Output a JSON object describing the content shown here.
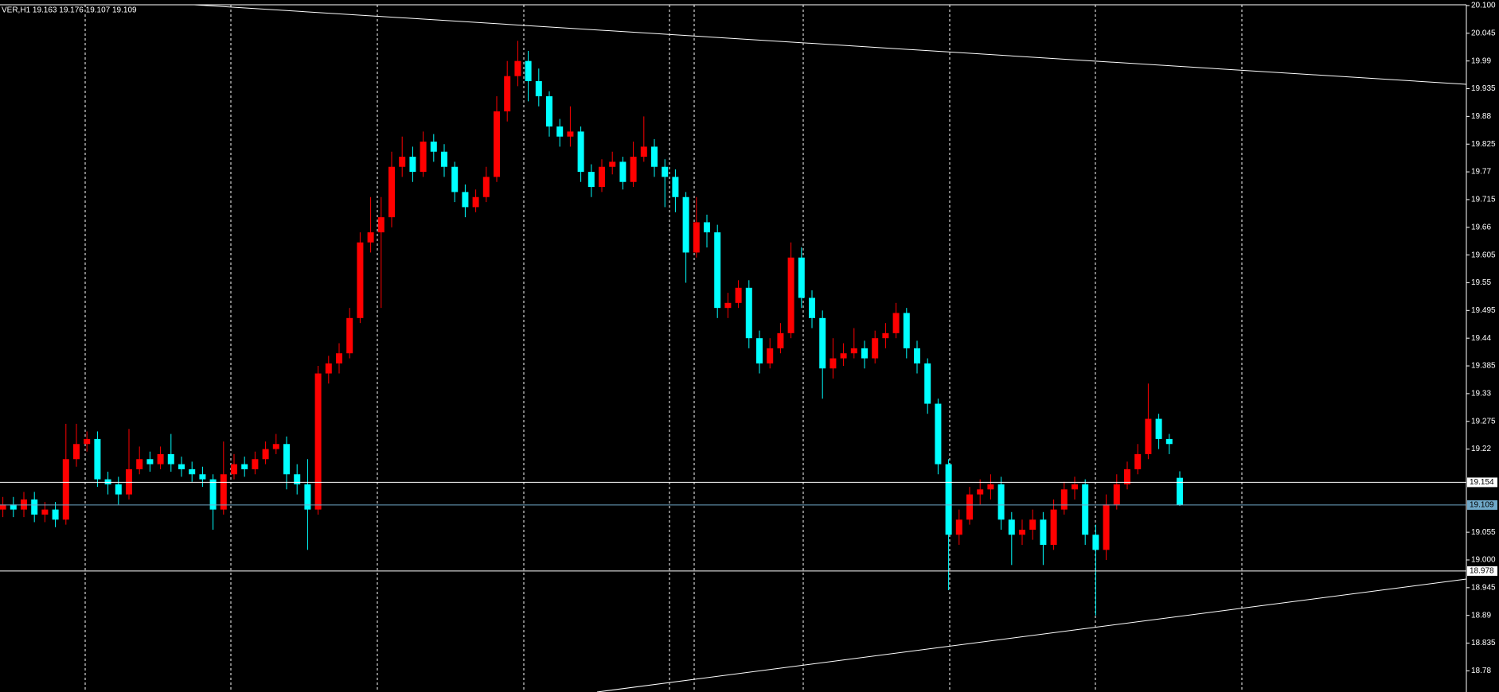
{
  "chart_data": {
    "type": "candlestick",
    "title": "VER,H1  19.163 19.176 19.107 19.109",
    "up_color": "#ff0000",
    "down_color": "#00ffff",
    "ylim": [
      18.738,
      20.111
    ],
    "yticks": [
      {
        "value": 20.1,
        "label": "20.100"
      },
      20.045,
      19.99,
      19.935,
      19.88,
      19.825,
      19.77,
      19.715,
      19.66,
      19.605,
      19.55,
      19.495,
      19.44,
      19.385,
      19.33,
      19.275,
      19.22,
      19.055,
      {
        "value": 19,
        "label": "19.000"
      },
      18.945,
      18.89,
      18.835,
      18.78
    ],
    "levels": [
      {
        "value": 19.154,
        "color": "#ffffff"
      },
      {
        "value": 19.109,
        "color": "#6fa8c8"
      },
      {
        "value": 18.978,
        "color": "#ffffff"
      }
    ],
    "open": [
      19.1,
      19.11,
      19.1,
      19.12,
      19.09,
      19.1,
      19.08,
      19.2,
      19.23,
      19.24,
      19.16,
      19.15,
      19.13,
      19.18,
      19.2,
      19.19,
      19.21,
      19.19,
      19.18,
      19.17,
      19.16,
      19.1,
      19.17,
      19.19,
      19.18,
      19.2,
      19.22,
      19.23,
      19.17,
      19.15,
      19.1,
      19.37,
      19.39,
      19.41,
      19.48,
      19.63,
      19.65,
      19.68,
      19.78,
      19.8,
      19.77,
      19.83,
      19.81,
      19.78,
      19.73,
      19.7,
      19.72,
      19.76,
      19.89,
      19.96,
      19.99,
      19.95,
      19.92,
      19.86,
      19.84,
      19.85,
      19.77,
      19.74,
      19.78,
      19.79,
      19.75,
      19.8,
      19.82,
      19.78,
      19.76,
      19.72,
      19.61,
      19.67,
      19.65,
      19.5,
      19.51,
      19.54,
      19.44,
      19.39,
      19.42,
      19.45,
      19.6,
      19.52,
      19.48,
      19.38,
      19.4,
      19.41,
      19.42,
      19.4,
      19.44,
      19.45,
      19.49,
      19.42,
      19.39,
      19.31,
      19.19,
      19.05,
      19.08,
      19.13,
      19.14,
      19.15,
      19.08,
      19.05,
      19.06,
      19.08,
      19.03,
      19.1,
      19.14,
      19.15,
      19.05,
      19.02,
      19.11,
      19.15,
      19.18,
      19.21,
      19.28,
      19.24,
      19.163
    ],
    "high": [
      19.125,
      19.125,
      19.135,
      19.135,
      19.115,
      19.115,
      19.27,
      19.27,
      19.255,
      19.255,
      19.175,
      19.165,
      19.26,
      19.225,
      19.215,
      19.225,
      19.25,
      19.205,
      19.195,
      19.185,
      19.17,
      19.235,
      19.21,
      19.205,
      19.215,
      19.235,
      19.25,
      19.245,
      19.19,
      19.2,
      19.385,
      19.405,
      19.43,
      19.5,
      19.65,
      19.72,
      19.72,
      19.81,
      19.84,
      19.82,
      19.85,
      19.845,
      19.825,
      19.79,
      19.745,
      19.735,
      19.78,
      19.92,
      19.99,
      20.03,
      20.01,
      19.975,
      19.93,
      19.875,
      19.9,
      19.86,
      19.785,
      19.795,
      19.81,
      19.8,
      19.83,
      19.88,
      19.835,
      19.795,
      19.775,
      19.73,
      19.72,
      19.685,
      19.665,
      19.53,
      19.555,
      19.555,
      19.455,
      19.44,
      19.47,
      19.63,
      19.62,
      19.535,
      19.495,
      19.44,
      19.43,
      19.46,
      19.435,
      19.455,
      19.47,
      19.51,
      19.5,
      19.435,
      19.4,
      19.32,
      19.2,
      19.1,
      19.145,
      19.16,
      19.17,
      19.165,
      19.095,
      19.08,
      19.1,
      19.095,
      19.12,
      19.155,
      19.165,
      19.16,
      19.07,
      19.13,
      19.17,
      19.195,
      19.23,
      19.35,
      19.29,
      19.25,
      19.176
    ],
    "low": [
      19.085,
      19.085,
      19.085,
      19.075,
      19.075,
      19.065,
      19.07,
      19.185,
      19.215,
      19.145,
      19.13,
      19.11,
      19.12,
      19.17,
      19.175,
      19.18,
      19.175,
      19.165,
      19.155,
      19.145,
      19.06,
      19.09,
      19.16,
      19.165,
      19.17,
      19.19,
      19.21,
      19.14,
      19.13,
      19.02,
      19.09,
      19.35,
      19.37,
      19.4,
      19.47,
      19.61,
      19.5,
      19.66,
      19.76,
      19.75,
      19.76,
      19.79,
      19.76,
      19.71,
      19.68,
      19.69,
      19.71,
      19.75,
      19.87,
      19.94,
      19.91,
      19.9,
      19.84,
      19.82,
      19.82,
      19.75,
      19.72,
      19.73,
      19.765,
      19.735,
      19.74,
      19.79,
      19.76,
      19.7,
      19.69,
      19.55,
      19.6,
      19.62,
      19.48,
      19.48,
      19.5,
      19.42,
      19.37,
      19.38,
      19.41,
      19.44,
      19.5,
      19.46,
      19.32,
      19.36,
      19.385,
      19.4,
      19.38,
      19.39,
      19.42,
      19.44,
      19.4,
      19.37,
      19.29,
      19.17,
      18.94,
      19.03,
      19.07,
      19.11,
      19.12,
      19.06,
      18.99,
      19.03,
      19.04,
      18.99,
      19.02,
      19.09,
      19.12,
      19.03,
      18.89,
      19.0,
      19.1,
      19.14,
      19.17,
      19.2,
      19.22,
      19.21,
      19.107
    ],
    "close": [
      19.11,
      19.1,
      19.12,
      19.09,
      19.1,
      19.08,
      19.2,
      19.23,
      19.24,
      19.16,
      19.15,
      19.13,
      19.18,
      19.2,
      19.19,
      19.21,
      19.19,
      19.18,
      19.17,
      19.16,
      19.1,
      19.17,
      19.19,
      19.18,
      19.2,
      19.22,
      19.23,
      19.17,
      19.15,
      19.1,
      19.37,
      19.39,
      19.41,
      19.48,
      19.63,
      19.65,
      19.68,
      19.78,
      19.8,
      19.77,
      19.83,
      19.81,
      19.78,
      19.73,
      19.7,
      19.72,
      19.76,
      19.89,
      19.96,
      19.99,
      19.95,
      19.92,
      19.86,
      19.84,
      19.85,
      19.77,
      19.74,
      19.78,
      19.79,
      19.75,
      19.8,
      19.82,
      19.78,
      19.76,
      19.72,
      19.61,
      19.67,
      19.65,
      19.5,
      19.51,
      19.54,
      19.44,
      19.39,
      19.42,
      19.45,
      19.6,
      19.52,
      19.48,
      19.38,
      19.4,
      19.41,
      19.42,
      19.4,
      19.44,
      19.45,
      19.49,
      19.42,
      19.39,
      19.31,
      19.19,
      19.05,
      19.08,
      19.13,
      19.14,
      19.15,
      19.08,
      19.05,
      19.06,
      19.08,
      19.03,
      19.1,
      19.14,
      19.15,
      19.05,
      19.02,
      19.11,
      19.15,
      19.18,
      19.21,
      19.28,
      19.24,
      19.23,
      19.109
    ]
  }
}
